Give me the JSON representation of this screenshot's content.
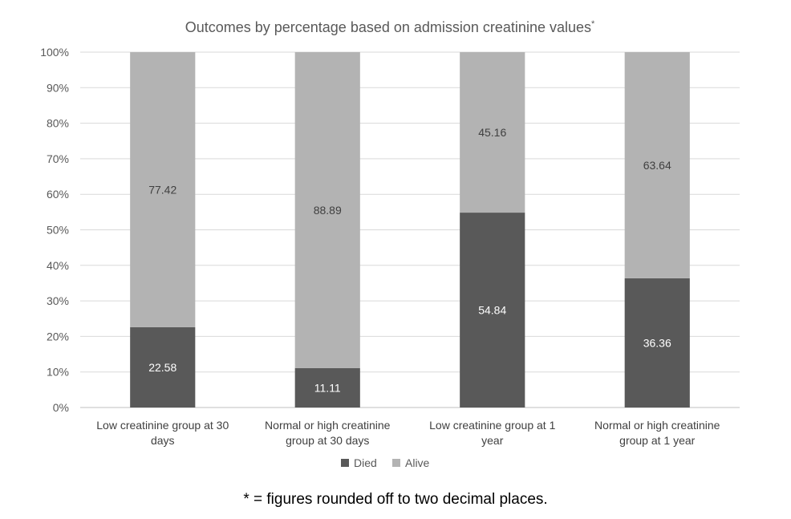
{
  "chart_data": {
    "type": "bar",
    "stacked": true,
    "title": "Outcomes by percentage based on admission creatinine values",
    "title_superscript": "*",
    "categories": [
      [
        "Low creatinine group at 30",
        "days"
      ],
      [
        "Normal or high creatinine",
        "group at 30 days"
      ],
      [
        "Low creatinine group at 1",
        "year"
      ],
      [
        "Normal or high creatinine",
        "group at 1 year"
      ]
    ],
    "series": [
      {
        "name": "Died",
        "values": [
          22.58,
          11.11,
          54.84,
          36.36
        ],
        "color": "#595959",
        "label_color": "#ffffff"
      },
      {
        "name": "Alive",
        "values": [
          77.42,
          88.89,
          45.16,
          63.64
        ],
        "color": "#b3b3b3",
        "label_color": "#404040"
      }
    ],
    "y_ticks": [
      "0%",
      "10%",
      "20%",
      "30%",
      "40%",
      "50%",
      "60%",
      "70%",
      "80%",
      "90%",
      "100%"
    ],
    "ylim": [
      0,
      100
    ],
    "grid": true,
    "legend_position": "bottom"
  },
  "footnote": "* = figures rounded off to two decimal places."
}
